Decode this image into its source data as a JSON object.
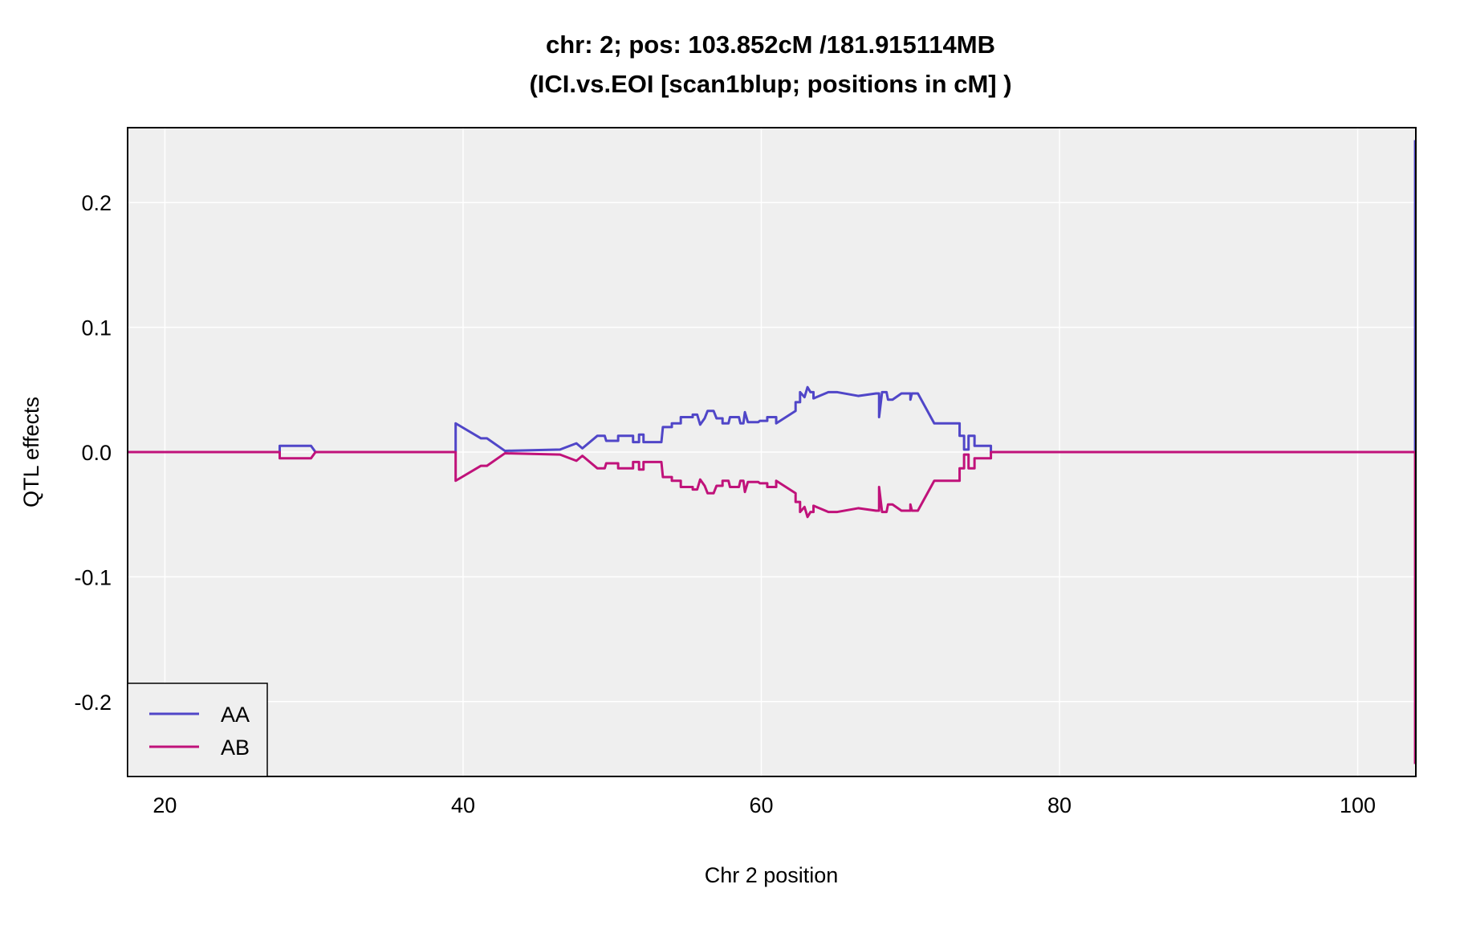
{
  "chart_data": {
    "type": "line",
    "title": "chr: 2; pos: 103.852cM /181.915114MB",
    "subtitle": "(ICI.vs.EOI [scan1blup; positions in cM] )",
    "xlabel": "Chr 2 position",
    "ylabel": "QTL effects",
    "xlim": [
      17.5,
      103.9
    ],
    "ylim": [
      -0.26,
      0.26
    ],
    "x_ticks": [
      20,
      40,
      60,
      80,
      100
    ],
    "y_ticks": [
      -0.2,
      -0.1,
      0.0,
      0.1,
      0.2
    ],
    "x_tick_labels": [
      "20",
      "40",
      "60",
      "80",
      "100"
    ],
    "y_tick_labels": [
      "-0.2",
      "-0.1",
      "0.0",
      "0.1",
      "0.2"
    ],
    "grid": true,
    "legend": {
      "position": "bottom-left",
      "entries": [
        "AA",
        "AB"
      ]
    },
    "series": [
      {
        "name": "AA",
        "color": "#5046c8",
        "points": [
          [
            17.5,
            0.0
          ],
          [
            27.7,
            0.0
          ],
          [
            27.7,
            0.005
          ],
          [
            29.8,
            0.005
          ],
          [
            30.1,
            0.0
          ],
          [
            39.5,
            0.0
          ],
          [
            39.5,
            0.023
          ],
          [
            41.2,
            0.011
          ],
          [
            41.6,
            0.011
          ],
          [
            42.8,
            0.001
          ],
          [
            46.5,
            0.002
          ],
          [
            47.6,
            0.007
          ],
          [
            48.0,
            0.003
          ],
          [
            49.0,
            0.013
          ],
          [
            49.5,
            0.013
          ],
          [
            49.6,
            0.009
          ],
          [
            50.4,
            0.009
          ],
          [
            50.4,
            0.013
          ],
          [
            51.4,
            0.013
          ],
          [
            51.4,
            0.008
          ],
          [
            51.8,
            0.008
          ],
          [
            51.8,
            0.014
          ],
          [
            52.1,
            0.014
          ],
          [
            52.1,
            0.008
          ],
          [
            53.3,
            0.008
          ],
          [
            53.4,
            0.02
          ],
          [
            54.0,
            0.02
          ],
          [
            54.0,
            0.023
          ],
          [
            54.6,
            0.023
          ],
          [
            54.6,
            0.028
          ],
          [
            55.4,
            0.028
          ],
          [
            55.4,
            0.03
          ],
          [
            55.7,
            0.03
          ],
          [
            55.9,
            0.022
          ],
          [
            56.2,
            0.027
          ],
          [
            56.4,
            0.033
          ],
          [
            56.8,
            0.033
          ],
          [
            57.0,
            0.027
          ],
          [
            57.4,
            0.027
          ],
          [
            57.4,
            0.023
          ],
          [
            57.8,
            0.023
          ],
          [
            57.9,
            0.028
          ],
          [
            58.5,
            0.028
          ],
          [
            58.6,
            0.023
          ],
          [
            58.8,
            0.023
          ],
          [
            58.9,
            0.032
          ],
          [
            59.1,
            0.024
          ],
          [
            59.8,
            0.024
          ],
          [
            59.9,
            0.025
          ],
          [
            60.4,
            0.025
          ],
          [
            60.4,
            0.028
          ],
          [
            61.0,
            0.028
          ],
          [
            61.0,
            0.023
          ],
          [
            62.3,
            0.033
          ],
          [
            62.3,
            0.04
          ],
          [
            62.6,
            0.04
          ],
          [
            62.6,
            0.048
          ],
          [
            62.9,
            0.044
          ],
          [
            63.1,
            0.052
          ],
          [
            63.3,
            0.048
          ],
          [
            63.5,
            0.048
          ],
          [
            63.5,
            0.043
          ],
          [
            64.5,
            0.048
          ],
          [
            65.1,
            0.048
          ],
          [
            66.5,
            0.045
          ],
          [
            67.7,
            0.047
          ],
          [
            67.9,
            0.047
          ],
          [
            67.9,
            0.028
          ],
          [
            68.1,
            0.048
          ],
          [
            68.4,
            0.048
          ],
          [
            68.5,
            0.042
          ],
          [
            68.8,
            0.042
          ],
          [
            69.4,
            0.047
          ],
          [
            70.0,
            0.047
          ],
          [
            70.0,
            0.042
          ],
          [
            70.1,
            0.047
          ],
          [
            70.5,
            0.047
          ],
          [
            71.6,
            0.023
          ],
          [
            72.3,
            0.023
          ],
          [
            73.3,
            0.023
          ],
          [
            73.3,
            0.013
          ],
          [
            73.6,
            0.013
          ],
          [
            73.6,
            0.002
          ],
          [
            73.9,
            0.002
          ],
          [
            73.9,
            0.013
          ],
          [
            74.3,
            0.013
          ],
          [
            74.3,
            0.005
          ],
          [
            75.4,
            0.005
          ],
          [
            75.4,
            0.0
          ],
          [
            103.85,
            0.0
          ],
          [
            103.85,
            0.25
          ]
        ]
      },
      {
        "name": "AB",
        "color": "#c0127a",
        "points": [
          [
            17.5,
            0.0
          ],
          [
            27.7,
            0.0
          ],
          [
            27.7,
            -0.005
          ],
          [
            29.8,
            -0.005
          ],
          [
            30.1,
            0.0
          ],
          [
            39.5,
            0.0
          ],
          [
            39.5,
            -0.023
          ],
          [
            41.2,
            -0.011
          ],
          [
            41.6,
            -0.011
          ],
          [
            42.8,
            -0.001
          ],
          [
            46.5,
            -0.002
          ],
          [
            47.6,
            -0.007
          ],
          [
            48.0,
            -0.003
          ],
          [
            49.0,
            -0.013
          ],
          [
            49.5,
            -0.013
          ],
          [
            49.6,
            -0.009
          ],
          [
            50.4,
            -0.009
          ],
          [
            50.4,
            -0.013
          ],
          [
            51.4,
            -0.013
          ],
          [
            51.4,
            -0.008
          ],
          [
            51.8,
            -0.008
          ],
          [
            51.8,
            -0.014
          ],
          [
            52.1,
            -0.014
          ],
          [
            52.1,
            -0.008
          ],
          [
            53.3,
            -0.008
          ],
          [
            53.4,
            -0.02
          ],
          [
            54.0,
            -0.02
          ],
          [
            54.0,
            -0.023
          ],
          [
            54.6,
            -0.023
          ],
          [
            54.6,
            -0.028
          ],
          [
            55.4,
            -0.028
          ],
          [
            55.4,
            -0.03
          ],
          [
            55.7,
            -0.03
          ],
          [
            55.9,
            -0.022
          ],
          [
            56.2,
            -0.027
          ],
          [
            56.4,
            -0.033
          ],
          [
            56.8,
            -0.033
          ],
          [
            57.0,
            -0.027
          ],
          [
            57.4,
            -0.027
          ],
          [
            57.4,
            -0.023
          ],
          [
            57.8,
            -0.023
          ],
          [
            57.9,
            -0.028
          ],
          [
            58.5,
            -0.028
          ],
          [
            58.6,
            -0.023
          ],
          [
            58.8,
            -0.023
          ],
          [
            58.9,
            -0.032
          ],
          [
            59.1,
            -0.024
          ],
          [
            59.8,
            -0.024
          ],
          [
            59.9,
            -0.025
          ],
          [
            60.4,
            -0.025
          ],
          [
            60.4,
            -0.028
          ],
          [
            61.0,
            -0.028
          ],
          [
            61.0,
            -0.023
          ],
          [
            62.3,
            -0.033
          ],
          [
            62.3,
            -0.04
          ],
          [
            62.6,
            -0.04
          ],
          [
            62.6,
            -0.048
          ],
          [
            62.9,
            -0.044
          ],
          [
            63.1,
            -0.052
          ],
          [
            63.3,
            -0.048
          ],
          [
            63.5,
            -0.048
          ],
          [
            63.5,
            -0.043
          ],
          [
            64.5,
            -0.048
          ],
          [
            65.1,
            -0.048
          ],
          [
            66.5,
            -0.045
          ],
          [
            67.7,
            -0.047
          ],
          [
            67.9,
            -0.047
          ],
          [
            67.9,
            -0.028
          ],
          [
            68.1,
            -0.048
          ],
          [
            68.4,
            -0.048
          ],
          [
            68.5,
            -0.042
          ],
          [
            68.8,
            -0.042
          ],
          [
            69.4,
            -0.047
          ],
          [
            70.0,
            -0.047
          ],
          [
            70.0,
            -0.042
          ],
          [
            70.1,
            -0.047
          ],
          [
            70.5,
            -0.047
          ],
          [
            71.6,
            -0.023
          ],
          [
            72.3,
            -0.023
          ],
          [
            73.3,
            -0.023
          ],
          [
            73.3,
            -0.013
          ],
          [
            73.6,
            -0.013
          ],
          [
            73.6,
            -0.002
          ],
          [
            73.9,
            -0.002
          ],
          [
            73.9,
            -0.013
          ],
          [
            74.3,
            -0.013
          ],
          [
            74.3,
            -0.005
          ],
          [
            75.4,
            -0.005
          ],
          [
            75.4,
            0.0
          ],
          [
            103.85,
            0.0
          ],
          [
            103.85,
            -0.25
          ]
        ]
      }
    ]
  }
}
